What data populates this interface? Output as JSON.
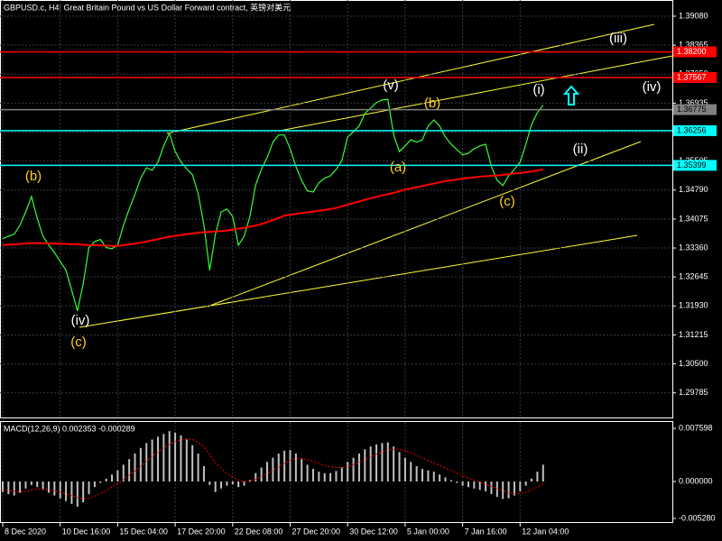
{
  "chart_data": [
    {
      "type": "line",
      "title": "GBPUSD.c, H4:  Great Britain Pound vs US Dollar Forward contract, 英镑对美元",
      "categories": [
        "8 Dec 2020",
        null,
        null,
        null,
        null,
        null,
        null,
        null,
        null,
        null,
        "10 Dec 16:00",
        null,
        null,
        null,
        null,
        null,
        null,
        null,
        null,
        null,
        "15 Dec 04:00",
        null,
        null,
        null,
        null,
        null,
        null,
        null,
        null,
        null,
        "17 Dec 20:00",
        null,
        null,
        null,
        null,
        null,
        null,
        null,
        null,
        null,
        "22 Dec 08:00",
        null,
        null,
        null,
        null,
        null,
        null,
        null,
        null,
        null,
        "27 Dec 20:00",
        null,
        null,
        null,
        null,
        null,
        null,
        null,
        null,
        null,
        "30 Dec 12:00",
        null,
        null,
        null,
        null,
        null,
        null,
        null,
        null,
        null,
        "5 Jan 00:00",
        null,
        null,
        null,
        null,
        null,
        null,
        null,
        null,
        null,
        "7 Jan 16:00",
        null,
        null,
        null,
        null,
        null,
        null,
        null,
        null,
        null,
        "12 Jan 04:00",
        null,
        null,
        null,
        null
      ],
      "series": [
        {
          "color": "#33ff33",
          "values": [
            1.3359,
            1.3365,
            1.337,
            1.3392,
            1.3425,
            1.3463,
            1.341,
            1.3365,
            1.3343,
            1.3325,
            1.3303,
            1.3281,
            1.3232,
            1.3181,
            1.3248,
            1.3337,
            1.3352,
            1.3357,
            1.3337,
            1.3334,
            1.3343,
            1.3392,
            1.3432,
            1.3468,
            1.3508,
            1.3534,
            1.3528,
            1.3548,
            1.3588,
            1.3619,
            1.3574,
            1.3548,
            1.3532,
            1.3517,
            1.347,
            1.3392,
            1.3281,
            1.337,
            1.3425,
            1.3432,
            1.3414,
            1.3343,
            1.3365,
            1.3414,
            1.3492,
            1.353,
            1.3559,
            1.3597,
            1.3615,
            1.3615,
            1.3581,
            1.3537,
            1.3503,
            1.3477,
            1.3474,
            1.3497,
            1.3508,
            1.3514,
            1.353,
            1.3552,
            1.361,
            1.3623,
            1.3637,
            1.3668,
            1.3681,
            1.3695,
            1.3701,
            1.3703,
            1.3615,
            1.3574,
            1.3588,
            1.3603,
            1.3597,
            1.3603,
            1.3637,
            1.3652,
            1.3637,
            1.361,
            1.3592,
            1.3579,
            1.3566,
            1.357,
            1.3581,
            1.3588,
            1.3592,
            1.3537,
            1.3503,
            1.349,
            1.3514,
            1.353,
            1.3548,
            1.3592,
            1.3641,
            1.367,
            1.3688
          ]
        },
        {
          "color": "#ff0000",
          "values": [
            1.3343,
            1.3344,
            1.3345,
            1.3346,
            1.3347,
            1.3348,
            1.3348,
            1.3348,
            1.3347,
            1.3347,
            1.3346,
            1.3346,
            1.3345,
            1.3345,
            1.3344,
            1.3343,
            1.3343,
            1.3342,
            1.3342,
            1.3341,
            1.3341,
            1.3343,
            1.3345,
            1.3347,
            1.3349,
            1.3352,
            1.3355,
            1.3358,
            1.3361,
            1.3364,
            1.3366,
            1.3368,
            1.337,
            1.3372,
            1.3374,
            1.3375,
            1.3376,
            1.3377,
            1.3378,
            1.3379,
            1.3381,
            1.3384,
            1.3386,
            1.3389,
            1.3391,
            1.3395,
            1.34,
            1.3405,
            1.341,
            1.3416,
            1.3418,
            1.342,
            1.3422,
            1.3424,
            1.3426,
            1.3428,
            1.343,
            1.3432,
            1.3435,
            1.3439,
            1.3443,
            1.3447,
            1.3451,
            1.3455,
            1.3459,
            1.3462,
            1.3466,
            1.3469,
            1.3472,
            1.3476,
            1.348,
            1.3483,
            1.3486,
            1.3489,
            1.3492,
            1.3495,
            1.3498,
            1.3501,
            1.3503,
            1.3505,
            1.3507,
            1.3509,
            1.351,
            1.3512,
            1.3513,
            1.3514,
            1.3515,
            1.3516,
            1.3518,
            1.352,
            1.3521,
            1.3523,
            1.3525,
            1.3527,
            1.353
          ]
        }
      ],
      "ylim": [
        1.292,
        1.3948
      ],
      "yticks": [
        {
          "value": 1.3908,
          "label": "1.39080"
        },
        1.38365,
        {
          "value": 1.3765,
          "label": "1.37650"
        },
        1.36935,
        {
          "value": 1.3622,
          "label": "1.36220"
        },
        1.35505,
        {
          "value": 1.3479,
          "label": "1.34790"
        },
        1.34075,
        {
          "value": 1.3336,
          "label": "1.33360"
        },
        1.32645,
        {
          "value": 1.3193,
          "label": "1.31930"
        },
        1.31215,
        {
          "value": 1.305,
          "label": "1.30500"
        },
        1.29785
      ],
      "grid": true,
      "levels": [
        {
          "value": 1.382,
          "label": "1.38200",
          "color": "#ff0000"
        },
        {
          "value": 1.37567,
          "label": "1.37567",
          "color": "#ff0000"
        },
        {
          "value": 1.36775,
          "label": "1.36775",
          "color": "#808080"
        },
        {
          "value": 1.36256,
          "label": "1.36256",
          "color": "#00ffff"
        },
        {
          "value": 1.35399,
          "label": "1.35399",
          "color": "#00ffff"
        }
      ],
      "annotations": [
        "(b)",
        "(iv)",
        "(c)",
        "(v)",
        "(b)",
        "(a)",
        "(c)",
        "(i)",
        "(ii)",
        "(iii)",
        "(iv)"
      ]
    },
    {
      "type": "bar",
      "title": "MACD(12,26,9) 0.002353 -0.000289",
      "series": [
        {
          "color": "#c0c0c0",
          "values": [
            -0.0015,
            -0.0018,
            -0.002,
            -0.0016,
            -0.001,
            -0.0005,
            -0.0008,
            -0.0012,
            -0.0016,
            -0.002,
            -0.0024,
            -0.0028,
            -0.0032,
            -0.0036,
            -0.003,
            -0.0018,
            -0.0008,
            -0.0002,
            0.0004,
            0.001,
            0.0016,
            0.0024,
            0.0032,
            0.004,
            0.0048,
            0.0055,
            0.006,
            0.0064,
            0.0068,
            0.0072,
            0.007,
            0.0066,
            0.006,
            0.0052,
            0.004,
            0.0022,
            -0.0005,
            -0.0015,
            -0.001,
            -0.0006,
            -0.0004,
            -0.0008,
            -0.0006,
            0.0002,
            0.0012,
            0.002,
            0.0028,
            0.0034,
            0.004,
            0.0044,
            0.0045,
            0.004,
            0.0032,
            0.0024,
            0.0018,
            0.0014,
            0.0012,
            0.0012,
            0.0015,
            0.002,
            0.0028,
            0.0034,
            0.004,
            0.0046,
            0.005,
            0.0053,
            0.0055,
            0.0056,
            0.005,
            0.0042,
            0.0034,
            0.0028,
            0.0022,
            0.0018,
            0.0016,
            0.0014,
            0.001,
            0.0006,
            0.0002,
            -0.0002,
            -0.0006,
            -0.0008,
            -0.001,
            -0.0012,
            -0.0014,
            -0.0018,
            -0.0022,
            -0.0025,
            -0.0024,
            -0.002,
            -0.0014,
            -0.0006,
            0.0004,
            0.0014,
            0.0024
          ]
        },
        {
          "color": "#ff0000",
          "values": [
            -0.0012,
            -0.0013,
            -0.0014,
            -0.0015,
            -0.0014,
            -0.0012,
            -0.0011,
            -0.0011,
            -0.0012,
            -0.0013,
            -0.0015,
            -0.0018,
            -0.002,
            -0.0023,
            -0.0025,
            -0.0024,
            -0.0021,
            -0.0017,
            -0.0013,
            -0.0008,
            -0.0003,
            0.0003,
            0.0009,
            0.0015,
            0.0022,
            0.0029,
            0.0036,
            0.0042,
            0.0048,
            0.0053,
            0.0057,
            0.006,
            0.0061,
            0.006,
            0.0056,
            0.0049,
            0.0038,
            0.0027,
            0.0019,
            0.0012,
            0.0006,
            0.0002,
            0.0,
            0.0,
            0.0003,
            0.0007,
            0.0011,
            0.0016,
            0.0021,
            0.0026,
            0.003,
            0.0033,
            0.0033,
            0.0031,
            0.0029,
            0.0026,
            0.0023,
            0.0021,
            0.002,
            0.002,
            0.0021,
            0.0024,
            0.0027,
            0.0031,
            0.0035,
            0.0039,
            0.0042,
            0.0045,
            0.0046,
            0.0046,
            0.0044,
            0.0041,
            0.0037,
            0.0033,
            0.003,
            0.0026,
            0.0023,
            0.0019,
            0.0016,
            0.0012,
            0.0008,
            0.0005,
            0.0002,
            -0.0001,
            -0.0004,
            -0.0007,
            -0.001,
            -0.0013,
            -0.0016,
            -0.0017,
            -0.0017,
            -0.0015,
            -0.0012,
            -0.0008,
            -0.0003
          ]
        }
      ],
      "ylim": [
        -0.00567,
        0.00851
      ],
      "yticks": [
        0.007598,
        {
          "value": 0,
          "label": "0.000000"
        },
        {
          "value": -0.00528,
          "label": "-0.005280"
        }
      ]
    }
  ]
}
